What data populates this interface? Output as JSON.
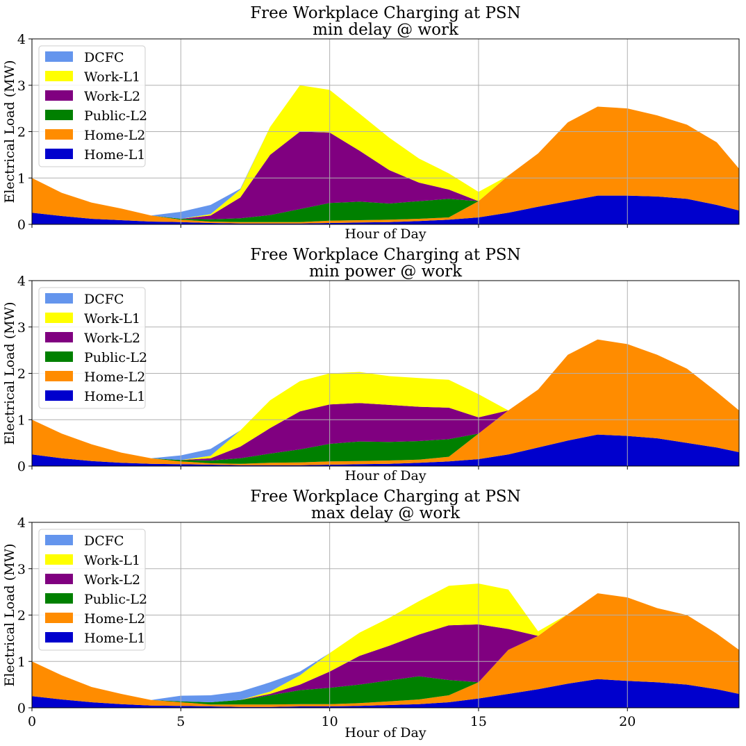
{
  "chart_data": [
    {
      "type": "area",
      "stacked": true,
      "title": "Free Workplace Charging at PSN",
      "subtitle": "min delay @ work",
      "xlabel": "Hour of Day",
      "ylabel": "Electrical Load (MW)",
      "xlim": [
        0,
        23.75
      ],
      "ylim": [
        0,
        4
      ],
      "xticks": [],
      "yticks": [
        0,
        1,
        2,
        3,
        4
      ],
      "grid": true,
      "legend_position": "upper-left",
      "x": [
        0,
        1,
        2,
        3,
        4,
        5,
        6,
        7,
        8,
        9,
        10,
        11,
        12,
        13,
        14,
        15,
        16,
        17,
        18,
        19,
        20,
        21,
        22,
        23,
        23.75
      ],
      "series": [
        {
          "name": "Home-L1",
          "color": "#0000cd",
          "values": [
            0.25,
            0.18,
            0.12,
            0.09,
            0.06,
            0.05,
            0.03,
            0.02,
            0.02,
            0.02,
            0.03,
            0.04,
            0.05,
            0.07,
            0.1,
            0.15,
            0.25,
            0.38,
            0.5,
            0.62,
            0.62,
            0.6,
            0.55,
            0.42,
            0.3
          ]
        },
        {
          "name": "Home-L2",
          "color": "#ff8c00",
          "values": [
            0.75,
            0.5,
            0.35,
            0.25,
            0.13,
            0.05,
            0.03,
            0.03,
            0.03,
            0.03,
            0.05,
            0.05,
            0.05,
            0.05,
            0.05,
            0.35,
            0.8,
            1.15,
            1.7,
            1.92,
            1.88,
            1.75,
            1.6,
            1.35,
            0.9
          ]
        },
        {
          "name": "Public-L2",
          "color": "#008000",
          "values": [
            0,
            0,
            0,
            0,
            0,
            0.02,
            0.05,
            0.08,
            0.15,
            0.28,
            0.38,
            0.4,
            0.35,
            0.38,
            0.4,
            0,
            0,
            0,
            0,
            0,
            0,
            0,
            0,
            0,
            0
          ]
        },
        {
          "name": "Work-L2",
          "color": "#800080",
          "values": [
            0,
            0,
            0,
            0,
            0,
            0,
            0.08,
            0.45,
            1.3,
            1.67,
            1.52,
            1.1,
            0.72,
            0.4,
            0.2,
            0,
            0,
            0,
            0,
            0,
            0,
            0,
            0,
            0,
            0
          ]
        },
        {
          "name": "Work-L1",
          "color": "#ffff00",
          "values": [
            0,
            0,
            0,
            0,
            0,
            0,
            0.03,
            0.17,
            0.6,
            1.0,
            0.92,
            0.8,
            0.7,
            0.52,
            0.35,
            0.2,
            0,
            0,
            0,
            0,
            0,
            0,
            0,
            0,
            0
          ]
        },
        {
          "name": "DCFC",
          "color": "#6495ed",
          "values": [
            0,
            0,
            0,
            0,
            0,
            0.15,
            0.2,
            0.02,
            0,
            0,
            0,
            0,
            0,
            0,
            0,
            0,
            0,
            0,
            0,
            0,
            0,
            0,
            0,
            0,
            0
          ]
        }
      ]
    },
    {
      "type": "area",
      "stacked": true,
      "title": "Free Workplace Charging at PSN",
      "subtitle": "min power @ work",
      "xlabel": "Hour of Day",
      "ylabel": "Electrical Load (MW)",
      "xlim": [
        0,
        23.75
      ],
      "ylim": [
        0,
        4
      ],
      "xticks": [],
      "yticks": [
        0,
        1,
        2,
        3,
        4
      ],
      "grid": true,
      "legend_position": "upper-left",
      "x": [
        0,
        1,
        2,
        3,
        4,
        5,
        6,
        7,
        8,
        9,
        10,
        11,
        12,
        13,
        14,
        15,
        16,
        17,
        18,
        19,
        20,
        21,
        22,
        23,
        23.75
      ],
      "series": [
        {
          "name": "Home-L1",
          "color": "#0000cd",
          "values": [
            0.25,
            0.17,
            0.11,
            0.07,
            0.05,
            0.04,
            0.03,
            0.02,
            0.02,
            0.02,
            0.03,
            0.04,
            0.05,
            0.07,
            0.1,
            0.15,
            0.25,
            0.4,
            0.55,
            0.68,
            0.65,
            0.6,
            0.5,
            0.4,
            0.3
          ]
        },
        {
          "name": "Home-L2",
          "color": "#ff8c00",
          "values": [
            0.75,
            0.53,
            0.36,
            0.22,
            0.12,
            0.06,
            0.03,
            0.03,
            0.05,
            0.06,
            0.07,
            0.07,
            0.07,
            0.07,
            0.1,
            0.55,
            0.95,
            1.25,
            1.85,
            2.05,
            1.98,
            1.8,
            1.6,
            1.2,
            0.9
          ]
        },
        {
          "name": "Public-L2",
          "color": "#008000",
          "values": [
            0,
            0,
            0,
            0,
            0,
            0.03,
            0.06,
            0.12,
            0.2,
            0.28,
            0.38,
            0.42,
            0.4,
            0.4,
            0.38,
            0,
            0,
            0,
            0,
            0,
            0,
            0,
            0,
            0,
            0
          ]
        },
        {
          "name": "Work-L2",
          "color": "#800080",
          "values": [
            0,
            0,
            0,
            0,
            0,
            0,
            0.05,
            0.25,
            0.55,
            0.82,
            0.85,
            0.83,
            0.8,
            0.74,
            0.68,
            0.35,
            0,
            0,
            0,
            0,
            0,
            0,
            0,
            0,
            0
          ]
        },
        {
          "name": "Work-L1",
          "color": "#ffff00",
          "values": [
            0,
            0,
            0,
            0,
            0,
            0,
            0.05,
            0.35,
            0.6,
            0.65,
            0.67,
            0.67,
            0.62,
            0.62,
            0.6,
            0.5,
            0,
            0,
            0,
            0,
            0,
            0,
            0,
            0,
            0
          ]
        },
        {
          "name": "DCFC",
          "color": "#6495ed",
          "values": [
            0,
            0,
            0,
            0,
            0,
            0.1,
            0.15,
            0,
            0,
            0,
            0,
            0,
            0,
            0,
            0,
            0,
            0,
            0,
            0,
            0,
            0,
            0,
            0,
            0,
            0
          ]
        }
      ]
    },
    {
      "type": "area",
      "stacked": true,
      "title": "Free Workplace Charging at PSN",
      "subtitle": "max delay @ work",
      "xlabel": "Hour of Day",
      "ylabel": "Electrical Load (MW)",
      "xlim": [
        0,
        23.75
      ],
      "ylim": [
        0,
        4
      ],
      "xticks": [
        0,
        5,
        10,
        15,
        20
      ],
      "yticks": [
        0,
        1,
        2,
        3,
        4
      ],
      "grid": true,
      "legend_position": "upper-left",
      "x": [
        0,
        1,
        2,
        3,
        4,
        5,
        6,
        7,
        8,
        9,
        10,
        11,
        12,
        13,
        14,
        15,
        16,
        17,
        18,
        19,
        20,
        21,
        22,
        23,
        23.75
      ],
      "series": [
        {
          "name": "Home-L1",
          "color": "#0000cd",
          "values": [
            0.25,
            0.18,
            0.12,
            0.08,
            0.05,
            0.04,
            0.03,
            0.02,
            0.02,
            0.03,
            0.03,
            0.04,
            0.06,
            0.08,
            0.12,
            0.2,
            0.3,
            0.4,
            0.52,
            0.62,
            0.58,
            0.55,
            0.5,
            0.4,
            0.3
          ]
        },
        {
          "name": "Home-L2",
          "color": "#ff8c00",
          "values": [
            0.75,
            0.52,
            0.33,
            0.22,
            0.12,
            0.08,
            0.04,
            0.05,
            0.05,
            0.05,
            0.05,
            0.06,
            0.08,
            0.1,
            0.15,
            0.35,
            0.95,
            1.15,
            1.5,
            1.85,
            1.8,
            1.6,
            1.5,
            1.2,
            0.95
          ]
        },
        {
          "name": "Public-L2",
          "color": "#008000",
          "values": [
            0,
            0,
            0,
            0,
            0,
            0.02,
            0.05,
            0.1,
            0.2,
            0.3,
            0.35,
            0.4,
            0.45,
            0.5,
            0.33,
            0,
            0,
            0,
            0,
            0,
            0,
            0,
            0,
            0,
            0
          ]
        },
        {
          "name": "Work-L2",
          "color": "#800080",
          "values": [
            0,
            0,
            0,
            0,
            0,
            0,
            0,
            0,
            0.03,
            0.12,
            0.35,
            0.62,
            0.75,
            0.9,
            1.18,
            1.25,
            0.45,
            0,
            0,
            0,
            0,
            0,
            0,
            0,
            0
          ]
        },
        {
          "name": "Work-L1",
          "color": "#ffff00",
          "values": [
            0,
            0,
            0,
            0,
            0,
            0,
            0,
            0,
            0.05,
            0.2,
            0.4,
            0.5,
            0.6,
            0.72,
            0.85,
            0.88,
            0.85,
            0.1,
            0,
            0,
            0,
            0,
            0,
            0,
            0
          ]
        },
        {
          "name": "DCFC",
          "color": "#6495ed",
          "values": [
            0,
            0,
            0,
            0,
            0,
            0.12,
            0.15,
            0.18,
            0.2,
            0.08,
            0,
            0,
            0,
            0,
            0,
            0,
            0,
            0,
            0,
            0,
            0,
            0,
            0,
            0,
            0
          ]
        }
      ]
    }
  ]
}
